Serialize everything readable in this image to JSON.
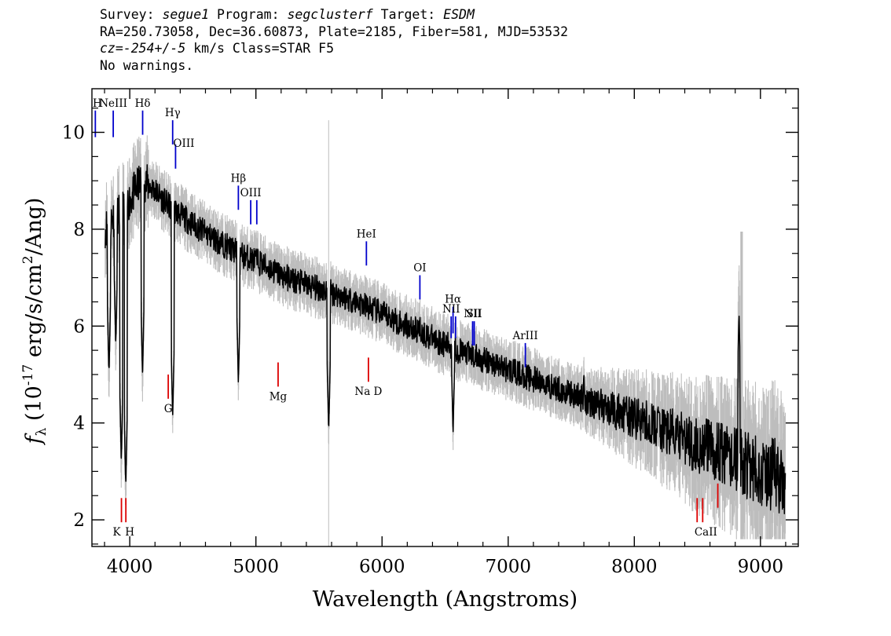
{
  "header": {
    "survey_label": "Survey:",
    "survey": "segue1",
    "program_label": "Program:",
    "program": "segclusterf",
    "target_label": "Target:",
    "target": "ESDM",
    "line2": "RA=250.73058, Dec=36.60873, Plate=2185, Fiber=581, MJD=53532",
    "cz_label": "cz=",
    "cz_value": "-254+/-5",
    "cz_rest": " km/s Class=STAR F5",
    "warnings": "No warnings."
  },
  "colors": {
    "flux": "#000000",
    "error": "#bdbdbd",
    "emission_line": "#0000cc",
    "absorption_line": "#dd0000",
    "sky_line": "#c8c8c8"
  },
  "chart_data": {
    "type": "line",
    "xlabel": "Wavelength (Angstroms)",
    "ylabel_parts": {
      "f": "f",
      "sub": "λ",
      "unit_a": " (10",
      "exp": "-17",
      "unit_b": " erg/s/cm",
      "exp2": "2",
      "unit_c": "/Ang)"
    },
    "xlim": [
      3700,
      9300
    ],
    "ylim": [
      1.45,
      10.9
    ],
    "x_ticks": [
      4000,
      5000,
      6000,
      7000,
      8000,
      9000
    ],
    "y_ticks": [
      2,
      4,
      6,
      8,
      10
    ],
    "x_tick_labels": [
      "4000",
      "5000",
      "6000",
      "7000",
      "8000",
      "9000"
    ],
    "y_tick_labels": [
      "2",
      "4",
      "6",
      "8",
      "10"
    ],
    "sky_line_wavelength": 5577,
    "continuum_anchors": {
      "x": [
        3800,
        3850,
        3900,
        3950,
        4000,
        4050,
        4100,
        4200,
        4300,
        4500,
        4700,
        4900,
        5000,
        5200,
        5400,
        5600,
        5800,
        6000,
        6200,
        6400,
        6600,
        6800,
        7000,
        7200,
        7400,
        7600,
        7800,
        8000,
        8200,
        8400,
        8600,
        8800,
        9000,
        9200
      ],
      "y": [
        8.0,
        8.2,
        8.3,
        8.4,
        8.6,
        8.85,
        9.0,
        8.8,
        8.5,
        8.1,
        7.75,
        7.45,
        7.35,
        7.05,
        6.85,
        6.7,
        6.5,
        6.25,
        6.0,
        5.75,
        5.5,
        5.3,
        5.1,
        4.9,
        4.7,
        4.5,
        4.3,
        4.1,
        3.9,
        3.65,
        3.45,
        3.25,
        3.0,
        2.85
      ]
    },
    "absorption_features": [
      {
        "x": 3835,
        "y": 5.0
      },
      {
        "x": 3889,
        "y": 5.6
      },
      {
        "x": 3933,
        "y": 3.2
      },
      {
        "x": 3968,
        "y": 2.7
      },
      {
        "x": 4101,
        "y": 5.0
      },
      {
        "x": 4340,
        "y": 4.1
      },
      {
        "x": 4861,
        "y": 4.8
      },
      {
        "x": 5577,
        "y": 3.8
      },
      {
        "x": 6563,
        "y": 3.75
      }
    ],
    "emission_features": [
      {
        "x": 6300,
        "y": 6.3
      },
      {
        "x": 7600,
        "y": 5.1
      },
      {
        "x": 8830,
        "y": 6.3
      }
    ],
    "error_band_peaks": [
      {
        "x": 8850,
        "y": 7.95
      }
    ],
    "emission_lines": [
      {
        "label": "H",
        "x": 3727,
        "y0": 9.9,
        "y1": 10.45
      },
      {
        "label": "NeIII",
        "x": 3869,
        "y0": 9.9,
        "y1": 10.45
      },
      {
        "label": "Hδ",
        "x": 4102,
        "y0": 9.95,
        "y1": 10.45
      },
      {
        "label": "Hγ",
        "x": 4340,
        "y0": 9.75,
        "y1": 10.25
      },
      {
        "label": "OIII",
        "x": 4363,
        "y0": 9.25,
        "y1": 9.75
      },
      {
        "label": "Hβ",
        "x": 4861,
        "y0": 8.4,
        "y1": 8.9
      },
      {
        "label": "OIII",
        "x": 4959,
        "y0": 8.1,
        "y1": 8.6
      },
      {
        "label": "",
        "x": 5007,
        "y0": 8.1,
        "y1": 8.6
      },
      {
        "label": "HeI",
        "x": 5876,
        "y0": 7.25,
        "y1": 7.75
      },
      {
        "label": "OI",
        "x": 6300,
        "y0": 6.55,
        "y1": 7.05
      },
      {
        "label": "NII",
        "x": 6548,
        "y0": 5.75,
        "y1": 6.2
      },
      {
        "label": "Hα",
        "x": 6563,
        "y0": 5.85,
        "y1": 6.4
      },
      {
        "label": "",
        "x": 6583,
        "y0": 5.75,
        "y1": 6.2
      },
      {
        "label": "NII",
        "x": 6718,
        "y0": 5.6,
        "y1": 6.1
      },
      {
        "label": "SII",
        "x": 6731,
        "y0": 5.6,
        "y1": 6.1
      },
      {
        "label": "ArIII",
        "x": 7136,
        "y0": 5.15,
        "y1": 5.65
      }
    ],
    "absorption_lines": [
      {
        "label": "K",
        "x": 3934,
        "y0": 1.95,
        "y1": 2.45
      },
      {
        "label": "H",
        "x": 3969,
        "y0": 1.95,
        "y1": 2.45
      },
      {
        "label": "G",
        "x": 4305,
        "y0": 4.5,
        "y1": 5.0
      },
      {
        "label": "Mg",
        "x": 5176,
        "y0": 4.75,
        "y1": 5.25
      },
      {
        "label": "Na D",
        "x": 5892,
        "y0": 4.85,
        "y1": 5.35
      },
      {
        "label": "CaII",
        "x": 8498,
        "y0": 1.95,
        "y1": 2.45
      },
      {
        "label": "",
        "x": 8542,
        "y0": 1.95,
        "y1": 2.45
      },
      {
        "label": "",
        "x": 8662,
        "y0": 2.25,
        "y1": 2.75
      }
    ]
  }
}
